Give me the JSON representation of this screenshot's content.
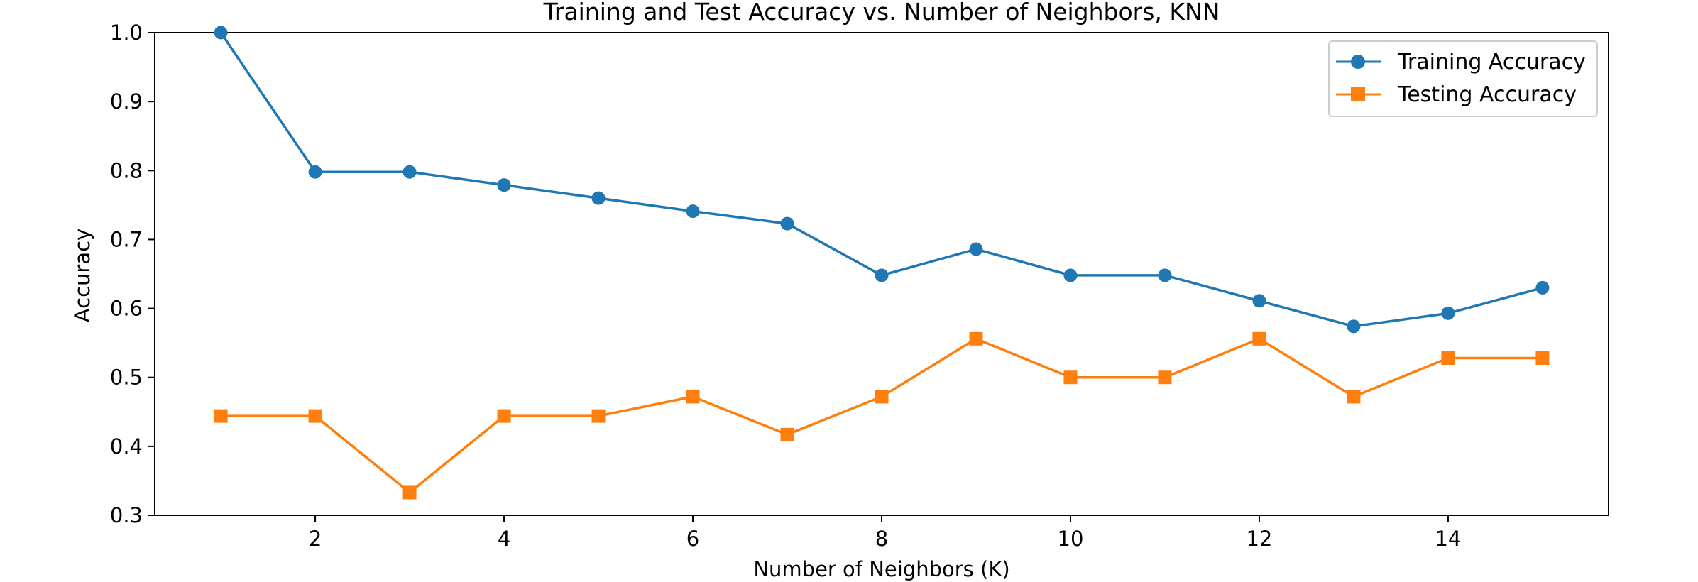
{
  "chart_data": {
    "type": "line",
    "title": "Training and Test Accuracy vs. Number of Neighbors, KNN",
    "xlabel": "Number of Neighbors (K)",
    "ylabel": "Accuracy",
    "xlim": [
      0.3,
      15.7
    ],
    "ylim": [
      0.3,
      1.0
    ],
    "xticks": [
      2,
      4,
      6,
      8,
      10,
      12,
      14
    ],
    "yticks": [
      0.3,
      0.4,
      0.5,
      0.6,
      0.7,
      0.8,
      0.9,
      1.0
    ],
    "x": [
      1,
      2,
      3,
      4,
      5,
      6,
      7,
      8,
      9,
      10,
      11,
      12,
      13,
      14,
      15
    ],
    "grid": false,
    "legend_position": "top-right",
    "series": [
      {
        "name": "Training Accuracy",
        "color": "#1f77b4",
        "marker": "circle",
        "values": [
          1.0,
          0.798,
          0.798,
          0.779,
          0.76,
          0.741,
          0.723,
          0.648,
          0.686,
          0.648,
          0.648,
          0.611,
          0.574,
          0.593,
          0.63
        ]
      },
      {
        "name": "Testing Accuracy",
        "color": "#ff7f0e",
        "marker": "square",
        "values": [
          0.444,
          0.444,
          0.333,
          0.444,
          0.444,
          0.472,
          0.417,
          0.472,
          0.556,
          0.5,
          0.5,
          0.556,
          0.472,
          0.528,
          0.528
        ]
      }
    ]
  }
}
